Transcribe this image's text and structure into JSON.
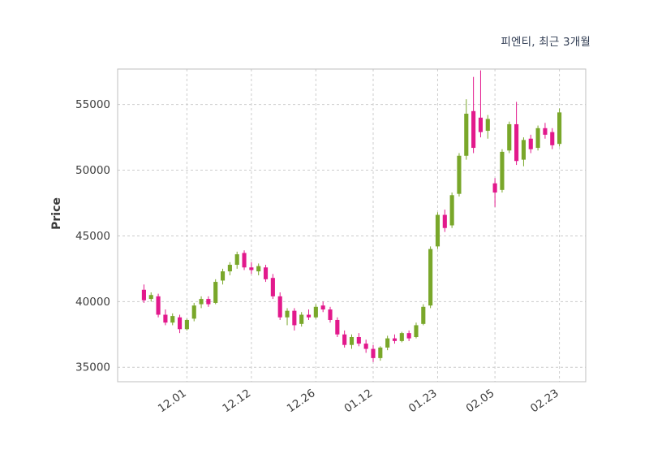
{
  "chart": {
    "title": "피엔티, 최근 3개월",
    "ylabel": "Price"
  },
  "chart_data": {
    "type": "candlestick",
    "title": "피엔티, 최근 3개월",
    "ylabel": "Price",
    "xlabel": "",
    "grid": true,
    "ylim": [
      33900,
      57700
    ],
    "y_ticks": [
      35000,
      40000,
      45000,
      50000,
      55000
    ],
    "x_tick_labels": [
      "12.01",
      "12.12",
      "12.26",
      "01.12",
      "01.23",
      "02.05",
      "02.23"
    ],
    "x_tick_indices": [
      6,
      15,
      24,
      32,
      41,
      49,
      58
    ],
    "up_color": "#79a72a",
    "down_color": "#e2198c",
    "candles_format": [
      "open",
      "high",
      "low",
      "close"
    ],
    "candles": [
      [
        40900,
        41300,
        39900,
        40100
      ],
      [
        40200,
        40700,
        40000,
        40500
      ],
      [
        40400,
        40600,
        38800,
        39000
      ],
      [
        39000,
        39400,
        38200,
        38400
      ],
      [
        38400,
        39100,
        38200,
        38900
      ],
      [
        38800,
        39000,
        37600,
        37900
      ],
      [
        37900,
        38700,
        37800,
        38600
      ],
      [
        38700,
        39900,
        38500,
        39700
      ],
      [
        39800,
        40400,
        39500,
        40200
      ],
      [
        40200,
        40400,
        39600,
        39800
      ],
      [
        39900,
        41700,
        39800,
        41500
      ],
      [
        41600,
        42500,
        41300,
        42300
      ],
      [
        42300,
        43000,
        42000,
        42800
      ],
      [
        42800,
        43800,
        42500,
        43600
      ],
      [
        43700,
        43900,
        42400,
        42600
      ],
      [
        42600,
        43000,
        42100,
        42400
      ],
      [
        42300,
        42900,
        42000,
        42700
      ],
      [
        42600,
        42800,
        41500,
        41700
      ],
      [
        41800,
        42100,
        40200,
        40400
      ],
      [
        40400,
        40700,
        38600,
        38800
      ],
      [
        38800,
        39500,
        38200,
        39300
      ],
      [
        39300,
        39500,
        37800,
        38200
      ],
      [
        38300,
        39200,
        38100,
        39000
      ],
      [
        39000,
        39400,
        38600,
        38800
      ],
      [
        38800,
        39800,
        38700,
        39600
      ],
      [
        39700,
        40000,
        39200,
        39400
      ],
      [
        39400,
        39600,
        38400,
        38600
      ],
      [
        38600,
        38800,
        37300,
        37500
      ],
      [
        37500,
        37800,
        36500,
        36700
      ],
      [
        36700,
        37500,
        36400,
        37300
      ],
      [
        37300,
        37600,
        36600,
        36800
      ],
      [
        36800,
        37100,
        36100,
        36400
      ],
      [
        36400,
        36700,
        35400,
        35700
      ],
      [
        35700,
        36600,
        35500,
        36500
      ],
      [
        36500,
        37400,
        36300,
        37200
      ],
      [
        37200,
        37500,
        36800,
        37000
      ],
      [
        37000,
        37700,
        36900,
        37600
      ],
      [
        37600,
        37800,
        37000,
        37200
      ],
      [
        37300,
        38400,
        37200,
        38200
      ],
      [
        38300,
        39800,
        38200,
        39600
      ],
      [
        39700,
        44200,
        39500,
        44000
      ],
      [
        44200,
        46800,
        44000,
        46600
      ],
      [
        46600,
        47000,
        45300,
        45600
      ],
      [
        45800,
        48300,
        45600,
        48100
      ],
      [
        48200,
        51300,
        48000,
        51100
      ],
      [
        51100,
        55400,
        50800,
        54300
      ],
      [
        54500,
        57100,
        51300,
        51700
      ],
      [
        54000,
        57600,
        52500,
        52900
      ],
      [
        53000,
        54200,
        52400,
        53900
      ],
      [
        49000,
        49400,
        47200,
        48300
      ],
      [
        48500,
        51600,
        48300,
        51400
      ],
      [
        51500,
        53700,
        51300,
        53500
      ],
      [
        53500,
        55200,
        50400,
        50700
      ],
      [
        50800,
        52500,
        50300,
        52300
      ],
      [
        52400,
        52700,
        51300,
        51600
      ],
      [
        51700,
        53400,
        51500,
        53200
      ],
      [
        53200,
        53600,
        52400,
        52700
      ],
      [
        52900,
        53200,
        51600,
        51900
      ],
      [
        52000,
        54700,
        51800,
        54400
      ]
    ]
  }
}
